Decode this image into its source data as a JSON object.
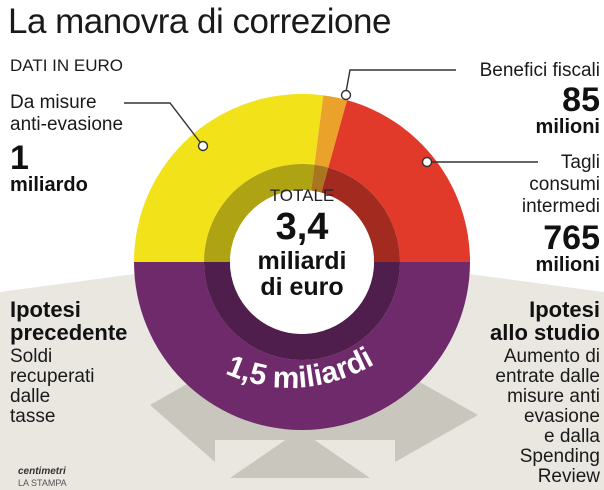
{
  "header": {
    "title": "La manovra di correzione",
    "subtitle": "DATI IN EURO"
  },
  "center": {
    "label": "TOTALE",
    "value": "3,4",
    "unit_line1": "miliardi",
    "unit_line2": "di euro"
  },
  "segments": {
    "anti_evasion": {
      "label_line1": "Da misure",
      "label_line2": "anti-evasione",
      "value": "1",
      "unit": "miliardo"
    },
    "fiscal": {
      "label": "Benefici fiscali",
      "value": "85",
      "unit": "milioni"
    },
    "cuts": {
      "label_line1": "Tagli",
      "label_line2": "consumi",
      "label_line3": "intermedi",
      "value": "765",
      "unit": "milioni"
    },
    "bottom": {
      "label": "1,5 miliardi"
    }
  },
  "hypotheses": {
    "left": {
      "title_line1": "Ipotesi",
      "title_line2": "precedente",
      "text_lines": [
        "Soldi",
        "recuperati",
        "dalle",
        "tasse"
      ]
    },
    "right": {
      "title_line1": "Ipotesi",
      "title_line2": "allo studio",
      "text_lines": [
        "Aumento di",
        "entrate dalle",
        "misure anti",
        "evasione",
        "e dalla",
        "Spending",
        "Review"
      ]
    }
  },
  "credit": {
    "brand": "centimetri",
    "publisher": "LA STAMPA"
  },
  "colors": {
    "anti_evasion": "#f2e21a",
    "fiscal": "#eba22a",
    "cuts": "#e23a2a",
    "bottom": "#6e2a6a",
    "arrows": "#c9c7bd",
    "ground": "#e8e6df"
  },
  "chart_data": {
    "type": "pie",
    "title": "La manovra di correzione",
    "subtitle": "DATI IN EURO",
    "center_text": "TOTALE 3,4 miliardi di euro",
    "slices": [
      {
        "label": "Da misure anti-evasione",
        "value": 1000,
        "display": "1 miliardo",
        "color": "#f2e21a"
      },
      {
        "label": "Benefici fiscali",
        "value": 85,
        "display": "85 milioni",
        "color": "#eba22a"
      },
      {
        "label": "Tagli consumi intermedi",
        "value": 765,
        "display": "765 milioni",
        "color": "#e23a2a"
      },
      {
        "label": "1,5 miliardi",
        "value": 1500,
        "display": "1,5 miliardi",
        "color": "#6e2a6a"
      }
    ],
    "unit": "milioni di euro"
  }
}
